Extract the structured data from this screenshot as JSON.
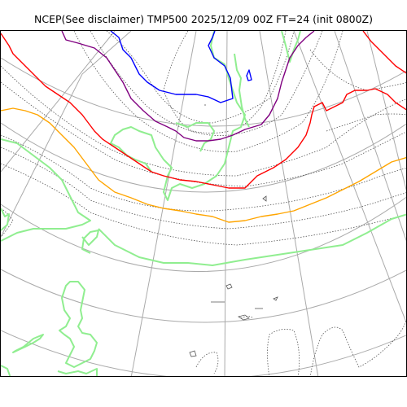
{
  "title": "NCEP(See disclaimer) TMP500 2025/12/09 00Z FT=24 (init 0800Z)",
  "map": {
    "colors": {
      "coastline": "#90ee90",
      "graticule": "#aaaaaa",
      "contour_minor": "#555555",
      "contour_blue": "#0000ff",
      "contour_purple": "#800080",
      "contour_red": "#ff0000",
      "contour_orange": "#ffa500",
      "frame": "#000000"
    }
  }
}
